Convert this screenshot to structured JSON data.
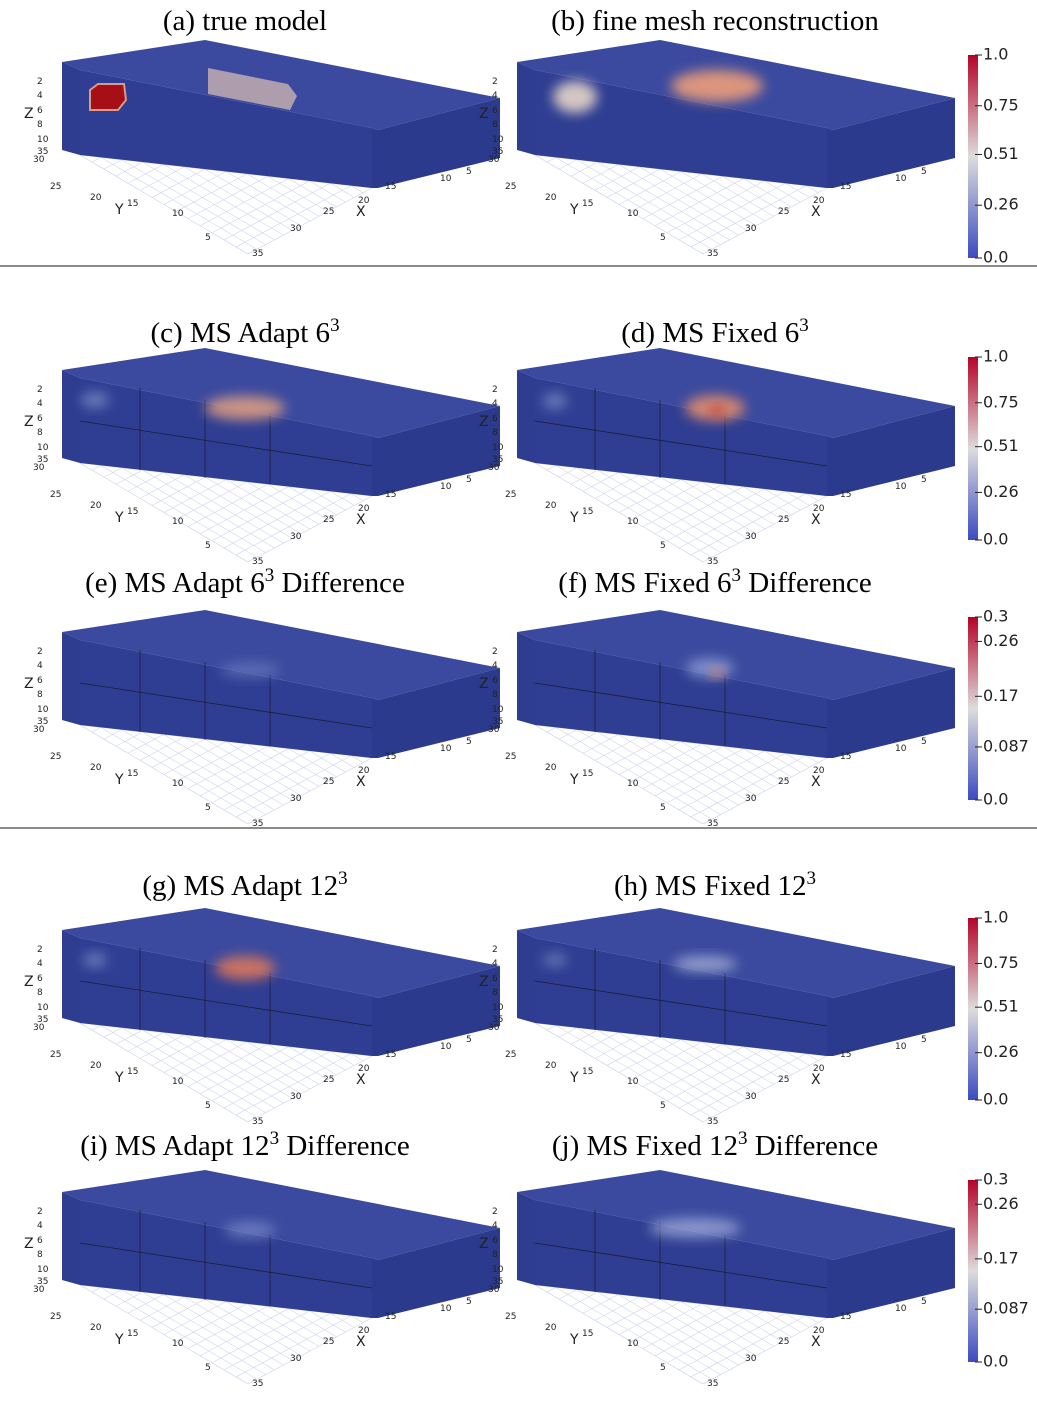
{
  "axes": {
    "z_label": "Z",
    "y_label": "Y",
    "x_label": "X",
    "z_ticks": [
      2,
      4,
      6,
      8,
      10
    ],
    "y_ticks": [
      35,
      30,
      25,
      20,
      15,
      10,
      5
    ],
    "x_ticks": [
      5,
      10,
      15,
      20,
      25,
      30,
      35
    ]
  },
  "panels": [
    {
      "title": {
        "text": "(a) true model"
      }
    },
    {
      "title": {
        "text": "(b) fine mesh reconstruction"
      }
    },
    {
      "title": {
        "text": "(c) MS Adapt 6",
        "sup": "3"
      }
    },
    {
      "title": {
        "text": "(d) MS Fixed 6",
        "sup": "3"
      }
    },
    {
      "title": {
        "text": "(e) MS Adapt 6",
        "sup": "3",
        "rest": " Difference"
      }
    },
    {
      "title": {
        "text": "(f) MS Fixed 6",
        "sup": "3",
        "rest": " Difference"
      }
    },
    {
      "title": {
        "text": "(g) MS Adapt 12",
        "sup": "3"
      }
    },
    {
      "title": {
        "text": "(h) MS Fixed 12",
        "sup": "3"
      }
    },
    {
      "title": {
        "text": "(i) MS Adapt 12",
        "sup": "3",
        "rest": " Difference"
      }
    },
    {
      "title": {
        "text": "(j) MS Fixed 12",
        "sup": "3",
        "rest": " Difference"
      }
    }
  ],
  "colorbars": [
    {
      "lim": [
        0,
        1
      ],
      "ticks": [
        {
          "value": 1,
          "label": "1.0"
        },
        0.75,
        0.51,
        0.26,
        {
          "value": 0,
          "label": "0.0"
        }
      ]
    },
    {
      "lim": [
        0,
        1
      ],
      "ticks": [
        {
          "value": 1,
          "label": "1.0"
        },
        0.75,
        0.51,
        0.26,
        {
          "value": 0,
          "label": "0.0"
        }
      ]
    },
    {
      "lim": [
        0,
        0.3
      ],
      "ticks": [
        0.3,
        0.26,
        0.17,
        0.087,
        {
          "value": 0,
          "label": "0.0"
        }
      ]
    },
    {
      "lim": [
        0,
        1
      ],
      "ticks": [
        {
          "value": 1,
          "label": "1.0"
        },
        0.75,
        0.51,
        0.26,
        {
          "value": 0,
          "label": "0.0"
        }
      ]
    },
    {
      "lim": [
        0,
        0.3
      ],
      "ticks": [
        0.3,
        0.26,
        0.17,
        0.087,
        {
          "value": 0,
          "label": "0.0"
        }
      ]
    }
  ]
}
